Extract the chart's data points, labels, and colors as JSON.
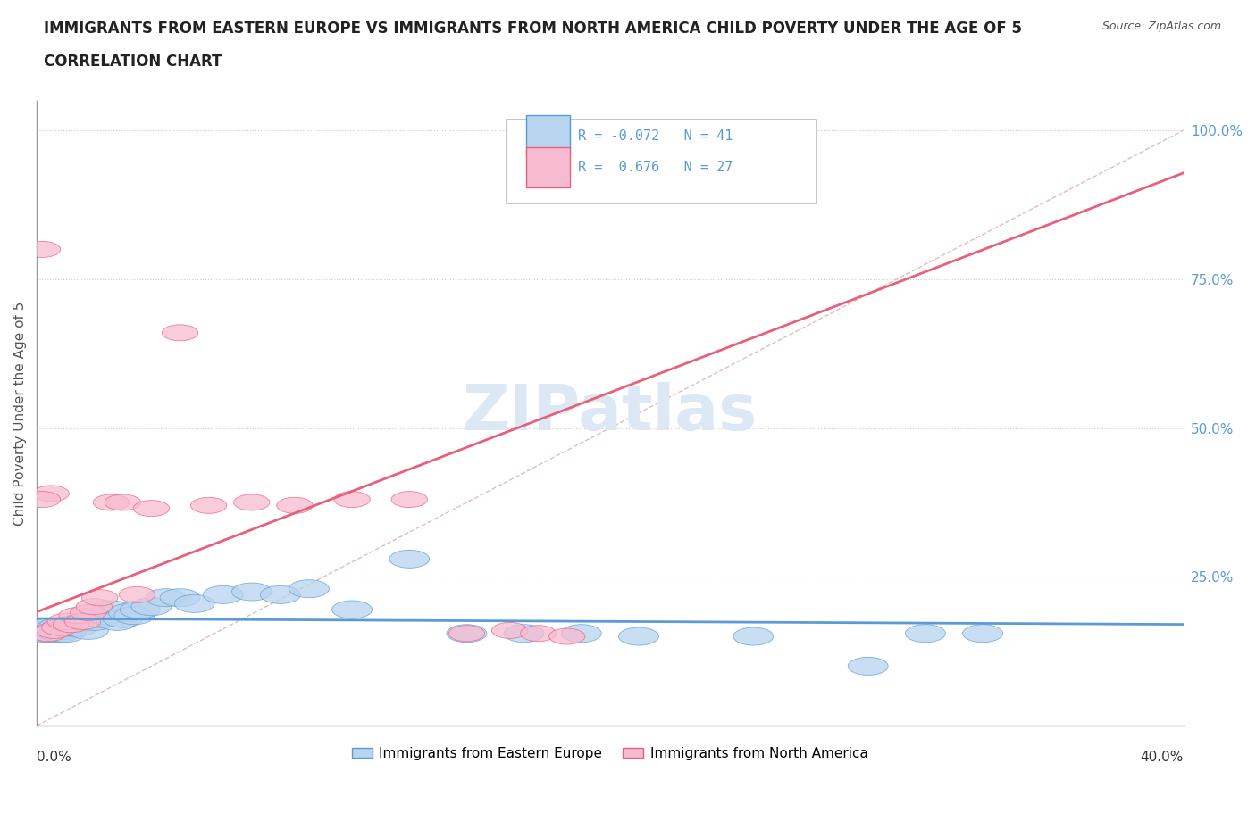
{
  "title_line1": "IMMIGRANTS FROM EASTERN EUROPE VS IMMIGRANTS FROM NORTH AMERICA CHILD POVERTY UNDER THE AGE OF 5",
  "title_line2": "CORRELATION CHART",
  "source": "Source: ZipAtlas.com",
  "ylabel": "Child Poverty Under the Age of 5",
  "legend_blue_label": "Immigrants from Eastern Europe",
  "legend_pink_label": "Immigrants from North America",
  "R_blue": -0.072,
  "N_blue": 41,
  "R_pink": 0.676,
  "N_pink": 27,
  "blue_color": "#b8d4ee",
  "pink_color": "#f7bbd0",
  "blue_line_color": "#5b9bd5",
  "pink_line_color": "#e8607a",
  "ref_line_color": "#ddaaaa",
  "grid_color": "#cccccc",
  "blue_scatter_x": [
    0.002,
    0.003,
    0.004,
    0.005,
    0.006,
    0.007,
    0.008,
    0.009,
    0.01,
    0.011,
    0.012,
    0.014,
    0.016,
    0.018,
    0.02,
    0.022,
    0.024,
    0.026,
    0.028,
    0.03,
    0.032,
    0.034,
    0.036,
    0.04,
    0.045,
    0.05,
    0.055,
    0.065,
    0.075,
    0.085,
    0.095,
    0.11,
    0.13,
    0.15,
    0.17,
    0.19,
    0.21,
    0.25,
    0.29,
    0.31,
    0.33
  ],
  "blue_scatter_y": [
    0.16,
    0.155,
    0.165,
    0.155,
    0.16,
    0.165,
    0.155,
    0.16,
    0.155,
    0.165,
    0.17,
    0.165,
    0.175,
    0.16,
    0.175,
    0.18,
    0.185,
    0.195,
    0.175,
    0.18,
    0.19,
    0.185,
    0.195,
    0.2,
    0.215,
    0.215,
    0.205,
    0.22,
    0.225,
    0.22,
    0.23,
    0.195,
    0.28,
    0.155,
    0.155,
    0.155,
    0.15,
    0.15,
    0.1,
    0.155,
    0.155
  ],
  "pink_scatter_x": [
    0.002,
    0.004,
    0.005,
    0.006,
    0.008,
    0.01,
    0.012,
    0.014,
    0.016,
    0.018,
    0.02,
    0.022,
    0.026,
    0.03,
    0.035,
    0.04,
    0.05,
    0.06,
    0.075,
    0.09,
    0.11,
    0.13,
    0.15,
    0.165,
    0.175,
    0.185,
    0.002
  ],
  "pink_scatter_y": [
    0.8,
    0.155,
    0.39,
    0.16,
    0.165,
    0.175,
    0.17,
    0.185,
    0.175,
    0.19,
    0.2,
    0.215,
    0.375,
    0.375,
    0.22,
    0.365,
    0.66,
    0.37,
    0.375,
    0.37,
    0.38,
    0.38,
    0.155,
    0.16,
    0.155,
    0.15,
    0.38
  ],
  "xmin": 0.0,
  "xmax": 0.4,
  "ymin": 0.0,
  "ymax": 1.05
}
